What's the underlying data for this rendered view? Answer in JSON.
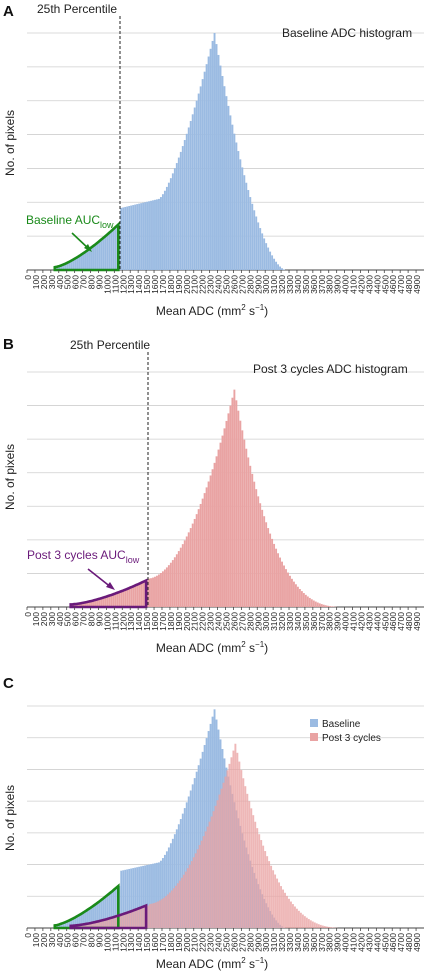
{
  "figure": {
    "panels": [
      {
        "letter": "A",
        "title": "Baseline ADC histogram",
        "percentile_label": "25th Percentile",
        "auc_label": {
          "main": "Baseline AUC",
          "sub": "low"
        },
        "ylabel": "No. of pixels",
        "xlabel": {
          "main": "Mean ADC (mm",
          "sup1": "2",
          "mid": " s",
          "sup2": "−1",
          "end": ")"
        }
      },
      {
        "letter": "B",
        "title": "Post 3 cycles ADC histogram",
        "percentile_label": "25th Percentile",
        "auc_label": {
          "main": "Post 3 cycles AUC",
          "sub": "low"
        },
        "ylabel": "No. of pixels",
        "xlabel": {
          "main": "Mean ADC (mm",
          "sup1": "2",
          "mid": " s",
          "sup2": "−1",
          "end": ")"
        }
      },
      {
        "letter": "C",
        "ylabel": "No. of pixels",
        "xlabel": {
          "main": "Mean ADC (mm",
          "sup1": "2",
          "mid": " s",
          "sup2": "−1",
          "end": ")"
        },
        "legend": [
          "Baseline",
          "Post 3 cycles"
        ]
      }
    ]
  },
  "chart_data": [
    {
      "type": "bar",
      "series": [
        {
          "name": "Baseline",
          "color": "#9bbbe2"
        }
      ],
      "x_ticks": [
        0,
        100,
        200,
        300,
        400,
        500,
        600,
        700,
        800,
        900,
        1000,
        1100,
        1200,
        1300,
        1400,
        1500,
        1600,
        1700,
        1800,
        1900,
        2000,
        2100,
        2200,
        2300,
        2400,
        2500,
        2600,
        2700,
        2800,
        2900,
        3000,
        3100,
        3200,
        3300,
        3400,
        3500,
        3600,
        3700,
        3800,
        3900,
        4000,
        4100,
        4200,
        4300,
        4400,
        4500,
        4600,
        4700,
        4800,
        4900
      ],
      "percentile_25": 1150,
      "auc_low_color": "#1a8a1a",
      "grid": true,
      "shape": {
        "start": 350,
        "rise_to": 1150,
        "plateau": [
          1300,
          1650
        ],
        "peak": 2350,
        "end": 3250
      }
    },
    {
      "type": "bar",
      "series": [
        {
          "name": "Post 3 cycles",
          "color": "#e9a3a3"
        }
      ],
      "x_ticks": [
        0,
        100,
        200,
        300,
        400,
        500,
        600,
        700,
        800,
        900,
        1000,
        1100,
        1200,
        1300,
        1400,
        1500,
        1600,
        1700,
        1800,
        1900,
        2000,
        2100,
        2200,
        2300,
        2400,
        2500,
        2600,
        2700,
        2800,
        2900,
        3000,
        3100,
        3200,
        3300,
        3400,
        3500,
        3600,
        3700,
        3800,
        3900,
        4000,
        4100,
        4200,
        4300,
        4400,
        4500,
        4600,
        4700,
        4800,
        4900
      ],
      "percentile_25": 1500,
      "auc_low_color": "#6a1a7a",
      "grid": true,
      "shape": {
        "start": 550,
        "peak": 2600,
        "end": 4000
      }
    },
    {
      "type": "bar",
      "series": [
        {
          "name": "Baseline",
          "color": "#9bbbe2"
        },
        {
          "name": "Post 3 cycles",
          "color": "#e9a3a3"
        }
      ],
      "x_ticks": [
        0,
        100,
        200,
        300,
        400,
        500,
        600,
        700,
        800,
        900,
        1000,
        1100,
        1200,
        1300,
        1400,
        1500,
        1600,
        1700,
        1800,
        1900,
        2000,
        2100,
        2200,
        2300,
        2400,
        2500,
        2600,
        2700,
        2800,
        2900,
        3000,
        3100,
        3200,
        3300,
        3400,
        3500,
        3600,
        3700,
        3800,
        3900,
        4000,
        4100,
        4200,
        4300,
        4400,
        4500,
        4600,
        4700,
        4800,
        4900
      ],
      "legend_position": "top-right",
      "grid": true
    }
  ]
}
